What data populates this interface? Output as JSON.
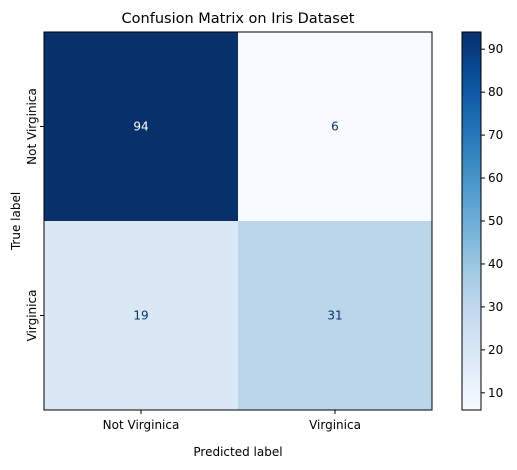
{
  "chart_data": {
    "type": "heatmap",
    "title": "Confusion Matrix on Iris Dataset",
    "xlabel": "Predicted label",
    "ylabel": "True label",
    "x_categories": [
      "Not Virginica",
      "Virginica"
    ],
    "y_categories": [
      "Not Virginica",
      "Virginica"
    ],
    "values": [
      [
        94,
        6
      ],
      [
        19,
        31
      ]
    ],
    "colormap": "Blues",
    "colorbar": {
      "range": [
        6,
        94
      ],
      "ticks": [
        10,
        20,
        30,
        40,
        50,
        60,
        70,
        80,
        90
      ],
      "tick_labels": [
        "10",
        "20",
        "30",
        "40",
        "50",
        "60",
        "70",
        "80",
        "90"
      ]
    },
    "text_colors": {
      "dark_cell": "#ffffff",
      "light_cell": "#08306b"
    }
  }
}
